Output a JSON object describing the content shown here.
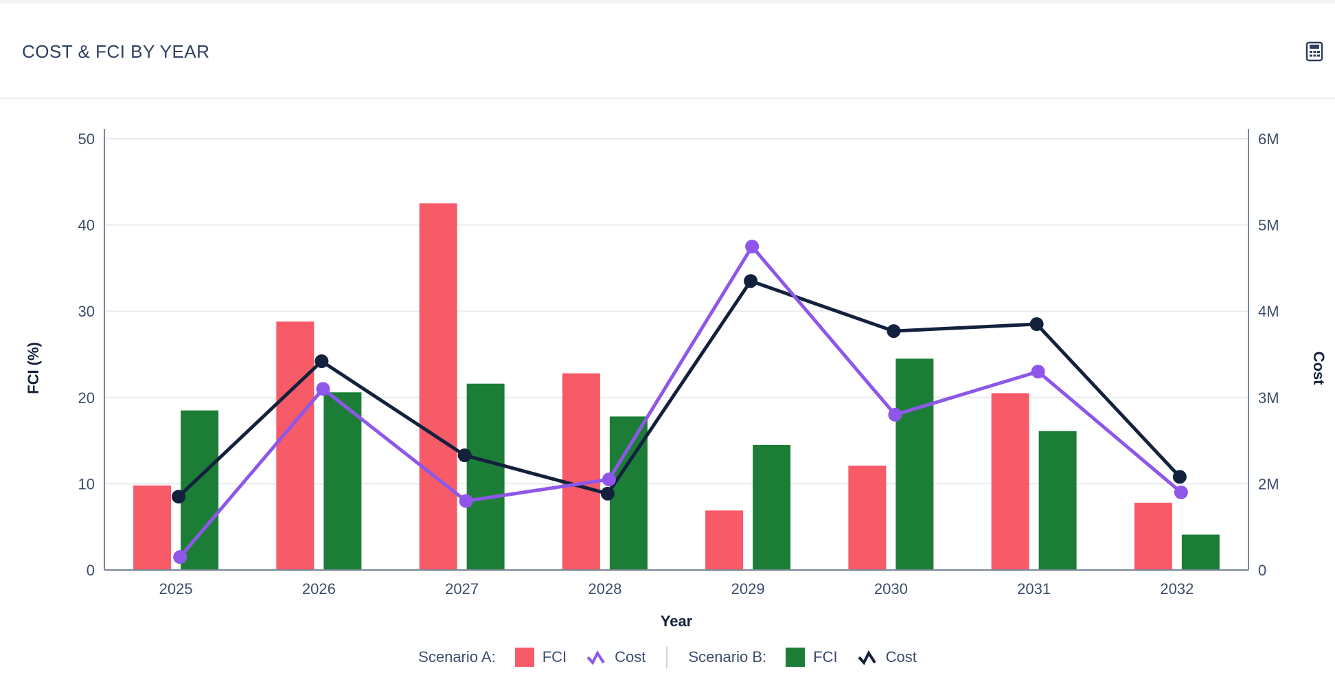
{
  "panel": {
    "title": "COST & FCI BY YEAR",
    "calculator_icon": "calculator-icon"
  },
  "legend": {
    "scenario_a_label": "Scenario A:",
    "scenario_b_label": "Scenario B:",
    "fci_label": "FCI",
    "cost_label": "Cost"
  },
  "colors": {
    "scenario_a_fci": "#f65b67",
    "scenario_b_fci": "#1c7e36",
    "scenario_a_cost": "#8e57ea",
    "scenario_b_cost": "#14213d",
    "grid": "#e9ebef",
    "axis": "#7a8699",
    "text": "#3b4d6b"
  },
  "chart_data": {
    "type": "bar",
    "categories": [
      "2025",
      "2026",
      "2027",
      "2028",
      "2029",
      "2030",
      "2031",
      "2032"
    ],
    "xlabel": "Year",
    "ylabel": "FCI (%)",
    "y2label": "Cost",
    "ylim": [
      0,
      50
    ],
    "y2lim": [
      0,
      6000000
    ],
    "yticks": [
      "0",
      "10",
      "20",
      "30",
      "40",
      "50"
    ],
    "y2ticks": [
      "0",
      "2M",
      "3M",
      "4M",
      "5M",
      "6M"
    ],
    "grid": true,
    "legend_position": "bottom-center",
    "series": [
      {
        "name": "FCI",
        "group": "Scenario A",
        "type": "bar",
        "axis": "left",
        "values": [
          9.8,
          28.8,
          42.5,
          22.8,
          6.9,
          12.1,
          20.5,
          7.8
        ]
      },
      {
        "name": "FCI",
        "group": "Scenario B",
        "type": "bar",
        "axis": "left",
        "values": [
          18.5,
          20.6,
          21.6,
          17.8,
          14.5,
          24.5,
          16.1,
          4.1
        ]
      },
      {
        "name": "Cost",
        "group": "Scenario A",
        "type": "line",
        "axis": "right",
        "values": [
          300000,
          3100000,
          1600000,
          2050000,
          4750000,
          2800000,
          3300000,
          1800000
        ]
      },
      {
        "name": "Cost",
        "group": "Scenario B",
        "type": "line",
        "axis": "right",
        "values": [
          1700000,
          3420000,
          2330000,
          1770000,
          4350000,
          3770000,
          3850000,
          2080000
        ]
      }
    ]
  }
}
